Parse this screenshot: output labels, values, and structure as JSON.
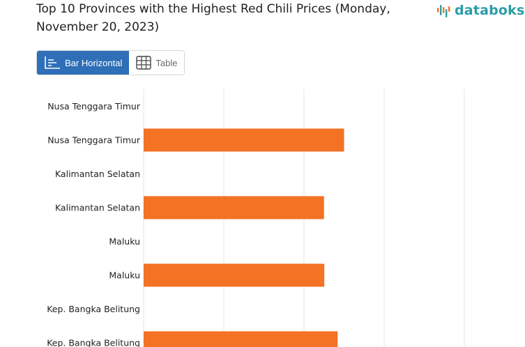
{
  "title": "Top 10 Provinces with the Highest Red Chili Prices (Monday, November 20, 2023)",
  "brand": {
    "name": "databoks",
    "color": "#2a9da6"
  },
  "view_toggle": {
    "active_label": "Bar Horizontal",
    "inactive_label": "Table",
    "active_color": "#2e6fb8"
  },
  "chart_data": {
    "type": "bar",
    "orientation": "horizontal",
    "bar_color": "#f37224",
    "grid": true,
    "categories": [
      "Nusa Tenggara Timur",
      "Nusa Tenggara Timur",
      "Kalimantan Selatan",
      "Kalimantan Selatan",
      "Maluku",
      "Maluku",
      "Kep. Bangka Belitung",
      "Kep. Bangka Belitung"
    ],
    "values": [
      null,
      75000,
      null,
      67500,
      null,
      67600,
      null,
      72600
    ],
    "xlim": [
      0,
      120000
    ],
    "gridlines": [
      0,
      30000,
      60000,
      90000,
      120000
    ]
  }
}
